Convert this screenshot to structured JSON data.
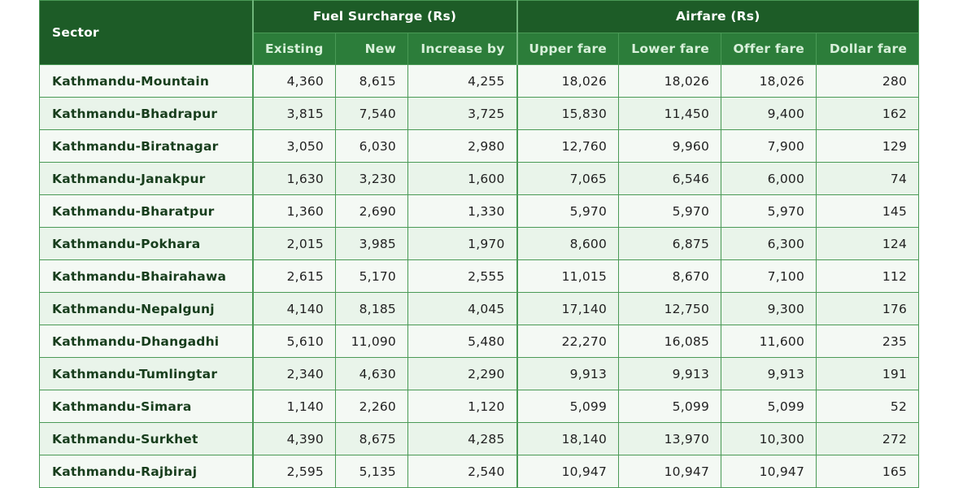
{
  "header": {
    "sector": "Sector",
    "fuel_group": "Fuel Surcharge (Rs)",
    "airfare_group": "Airfare (Rs)",
    "cols": [
      "Existing",
      "New",
      "Increase by",
      "Upper fare",
      "Lower fare",
      "Offer fare",
      "Dollar fare"
    ]
  },
  "rows": [
    [
      "Kathmandu-Mountain",
      "4,360",
      "8,615",
      "4,255",
      "18,026",
      "18,026",
      "18,026",
      "280"
    ],
    [
      "Kathmandu-Bhadrapur",
      "3,815",
      "7,540",
      "3,725",
      "15,830",
      "11,450",
      "9,400",
      "162"
    ],
    [
      "Kathmandu-Biratnagar",
      "3,050",
      "6,030",
      "2,980",
      "12,760",
      "9,960",
      "7,900",
      "129"
    ],
    [
      "Kathmandu-Janakpur",
      "1,630",
      "3,230",
      "1,600",
      "7,065",
      "6,546",
      "6,000",
      "74"
    ],
    [
      "Kathmandu-Bharatpur",
      "1,360",
      "2,690",
      "1,330",
      "5,970",
      "5,970",
      "5,970",
      "145"
    ],
    [
      "Kathmandu-Pokhara",
      "2,015",
      "3,985",
      "1,970",
      "8,600",
      "6,875",
      "6,300",
      "124"
    ],
    [
      "Kathmandu-Bhairahawa",
      "2,615",
      "5,170",
      "2,555",
      "11,015",
      "8,670",
      "7,100",
      "112"
    ],
    [
      "Kathmandu-Nepalgunj",
      "4,140",
      "8,185",
      "4,045",
      "17,140",
      "12,750",
      "9,300",
      "176"
    ],
    [
      "Kathmandu-Dhangadhi",
      "5,610",
      "11,090",
      "5,480",
      "22,270",
      "16,085",
      "11,600",
      "235"
    ],
    [
      "Kathmandu-Tumlingtar",
      "2,340",
      "4,630",
      "2,290",
      "9,913",
      "9,913",
      "9,913",
      "191"
    ],
    [
      "Kathmandu-Simara",
      "1,140",
      "2,260",
      "1,120",
      "5,099",
      "5,099",
      "5,099",
      "52"
    ],
    [
      "Kathmandu-Surkhet",
      "4,390",
      "8,675",
      "4,285",
      "18,140",
      "13,970",
      "10,300",
      "272"
    ],
    [
      "Kathmandu-Rajbiraj",
      "2,595",
      "5,135",
      "2,540",
      "10,947",
      "10,947",
      "10,947",
      "165"
    ]
  ]
}
